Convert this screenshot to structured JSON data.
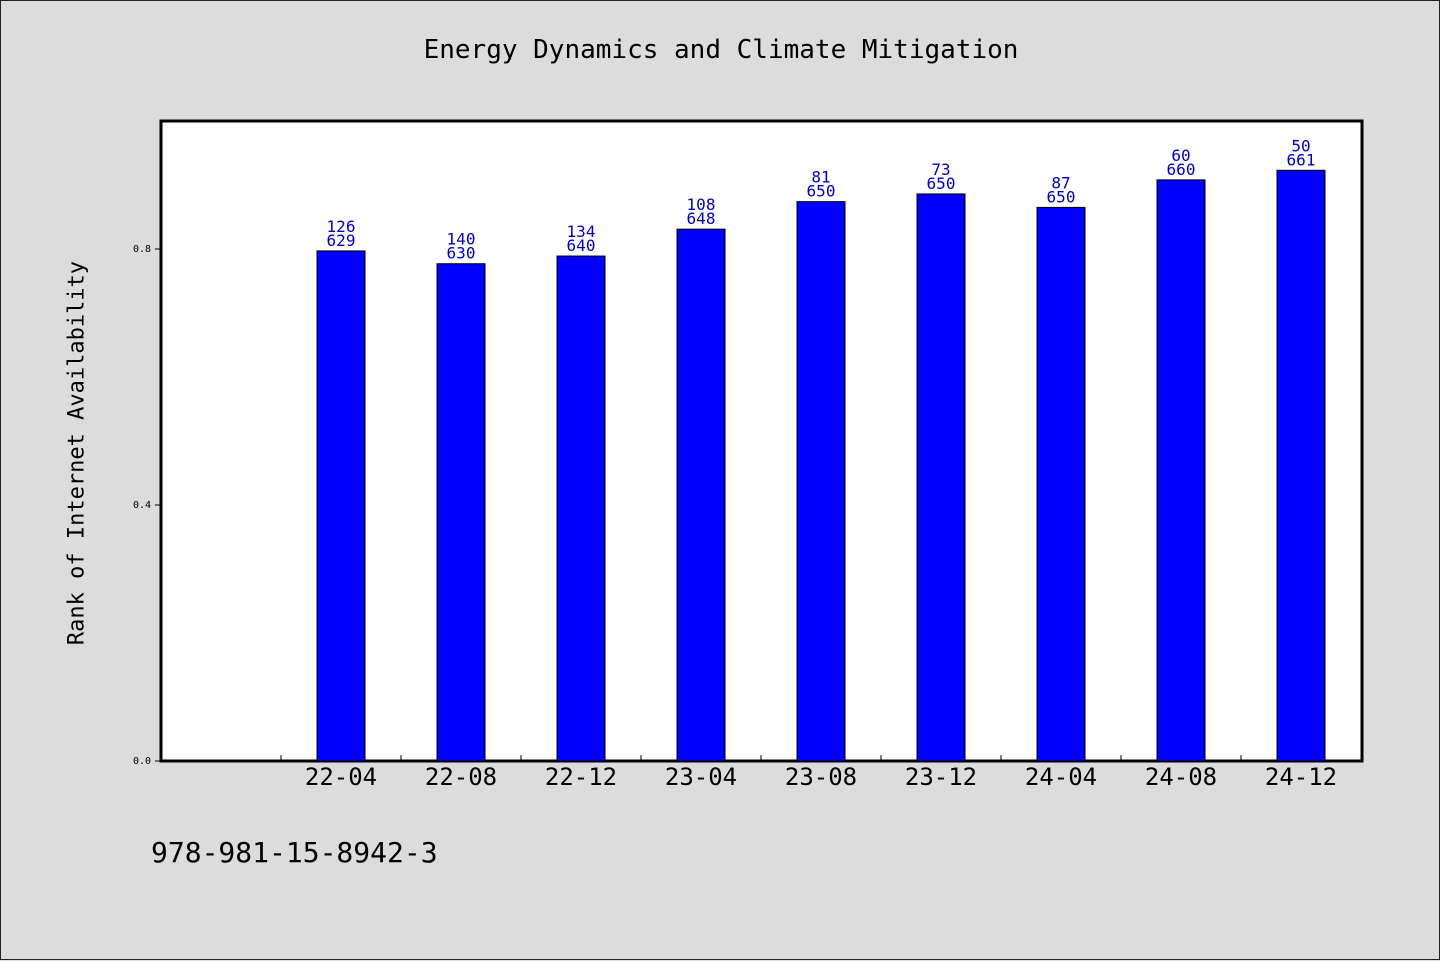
{
  "chart_data": {
    "type": "bar",
    "title": "Energy Dynamics and Climate Mitigation",
    "xlabel": "",
    "ylabel": "Rank of Internet Availability",
    "ylim": [
      0,
      1.0
    ],
    "yticks": [
      0.0,
      0.4,
      0.8
    ],
    "ytick_labels": [
      "0.0",
      "0.4",
      "0.8"
    ],
    "grid": false,
    "categories": [
      "22-04",
      "22-08",
      "22-12",
      "23-04",
      "23-08",
      "23-12",
      "24-04",
      "24-08",
      "24-12"
    ],
    "values": [
      0.797,
      0.777,
      0.789,
      0.831,
      0.874,
      0.886,
      0.865,
      0.908,
      0.923
    ],
    "label_top": [
      "126",
      "140",
      "134",
      "108",
      "81",
      "73",
      "87",
      "60",
      "50"
    ],
    "label_bottom": [
      "629",
      "630",
      "640",
      "648",
      "650",
      "650",
      "650",
      "660",
      "661"
    ],
    "bar_color": "#0000ff",
    "label_color": "#0000cc"
  },
  "footer": {
    "isbn": "978-981-15-8942-3"
  }
}
